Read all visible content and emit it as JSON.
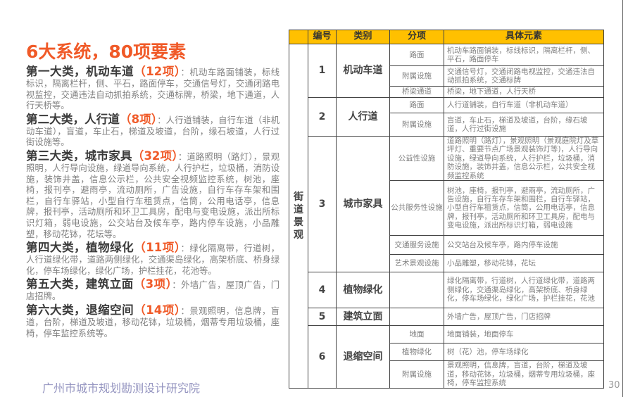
{
  "title": "6大系统，80项要素",
  "sections": [
    {
      "heading": "第一大类，机动车道",
      "count": "（12项）",
      "desc": "：机动车路面铺装，标线标识，隔离栏杆，侧、平石，路面停车，交通信号灯，交通闭路电视监控，交通违法自动抓拍系统，交通标牌，桥梁，地下通道，人行天桥等。"
    },
    {
      "heading": "第二大类，人行道",
      "count": "（8项）",
      "desc": "：人行道铺装，自行车道（非机动车道），盲道，车止石，梯道及坡道，台阶，缘石坡道，人行过街设施等。"
    },
    {
      "heading": "第三大类，城市家具",
      "count": "（32项）",
      "desc": "：道路照明（路灯），景观照明，人行导向设施，绿道导向系统，人行护栏，垃圾桶，消防设施，装饰井盖，信息公示栏，公共安全视频监控系统，树池，座椅，报刊亭，避雨亭，流动厕所，广告设施，自行车存车架和围栏，自行车驿站，小型自行车租赁点，信筒，公用电话亭，信息牌，报刊亭，活动厕所和环卫工具房，配电与变电设施，派出所标识灯箱，弱电设施，公交站台及候车亭，路内停车设施，小品雕塑，移动花钵，花坛等。"
    },
    {
      "heading": "第四大类，植物绿化",
      "count": "（11项）",
      "desc": "：绿化隔离带，行道树，人行道绿化带，道路两侧绿化，交通渠岛绿化，高架桥底、桥身绿化，停车场绿化，绿化广场，护栏挂花，花池等。"
    },
    {
      "heading": "第五大类，建筑立面",
      "count": "（3项）",
      "desc": "：外墙广告，屋顶广告，门店招牌。"
    },
    {
      "heading": "第六大类，退缩空间",
      "count": "（14项）",
      "desc": "：景观照明，信息牌，盲道，台阶，梯道及坡道，移动花钵，垃圾桶，烟蒂专用垃圾桶，座椅，停车监控系统等。"
    }
  ],
  "table": {
    "headers": [
      "",
      "编号",
      "类别",
      "分项",
      "具体元素"
    ],
    "group": "街道景观",
    "rows": [
      {
        "num": "1",
        "cat": "机动车道",
        "subs": [
          {
            "name": "路面",
            "el": "机动车路面铺装，标线标识，隔离栏杆，侧、平石，路面停车"
          },
          {
            "name": "附属设施",
            "el": "交通信号灯，交通闭路电视监控，交通违法自动抓拍系统，交通标牌"
          },
          {
            "name": "桥梁通道",
            "el": "桥梁，地下通道，人行天桥"
          }
        ]
      },
      {
        "num": "2",
        "cat": "人行道",
        "subs": [
          {
            "name": "路面",
            "el": "人行道铺装，自行车道（非机动车道）"
          },
          {
            "name": "附属设施",
            "el": "盲道，车止石，梯道及坡道，台阶，缘石坡道，人行过街设施"
          }
        ]
      },
      {
        "num": "3",
        "cat": "城市家具",
        "subs": [
          {
            "name": "公益性设施",
            "el": "道路照明（路灯），景观照明（景观庭院灯及草坪灯、重要节点广场景观装饰灯等)，人行导向设施，绿道导向系统，人行护栏，垃圾桶，消防设施，装饰井盖，信息公示栏，公共安全视频监控系统"
          },
          {
            "name": "公共服务性设施",
            "el": "树池，座椅，报刊亭，避雨亭，流动厕所，广告设施，自行车存车架和围栏，自行车驿站，小型自行车租赁点，信筒，公用电话亭，信息牌，报刊亭，活动厕所和环卫工具房，配电与变电设施，派出所标识灯箱，弱电设施"
          },
          {
            "name": "交通服务设施",
            "el": "公交站台及候车亭，路内停车设施"
          },
          {
            "name": "艺术景观设施",
            "el": "小品雕塑，移动花钵，花坛"
          }
        ]
      },
      {
        "num": "4",
        "cat": "植物绿化",
        "subs": [
          {
            "name": "",
            "el": "绿化隔离带，行道树，人行道绿化带，道路两侧绿化，交通渠岛绿化，高架桥底、桥身绿化，停车场绿化，绿化广场，护栏挂花，花池"
          }
        ]
      },
      {
        "num": "5",
        "cat": "建筑立面",
        "subs": [
          {
            "name": "",
            "el": "外墙广告，屋顶广告，门店招牌"
          }
        ]
      },
      {
        "num": "6",
        "cat": "退缩空间",
        "subs": [
          {
            "name": "地面",
            "el": "地面铺装，地面停车"
          },
          {
            "name": "植物绿化",
            "el": "树（花）池，停车场绿化"
          },
          {
            "name": "附属设施",
            "el": "景观照明，信息牌，盲道，台阶，梯道及坡道，移动花钵，垃圾桶，烟蒂专用垃圾桶，座椅，停车监控系统"
          }
        ]
      }
    ]
  },
  "watermark": "广州市城市规划勘测设计研究院",
  "page_number": "30",
  "colors": {
    "accent": "#f05a28",
    "header_bg": "#ffc000"
  }
}
